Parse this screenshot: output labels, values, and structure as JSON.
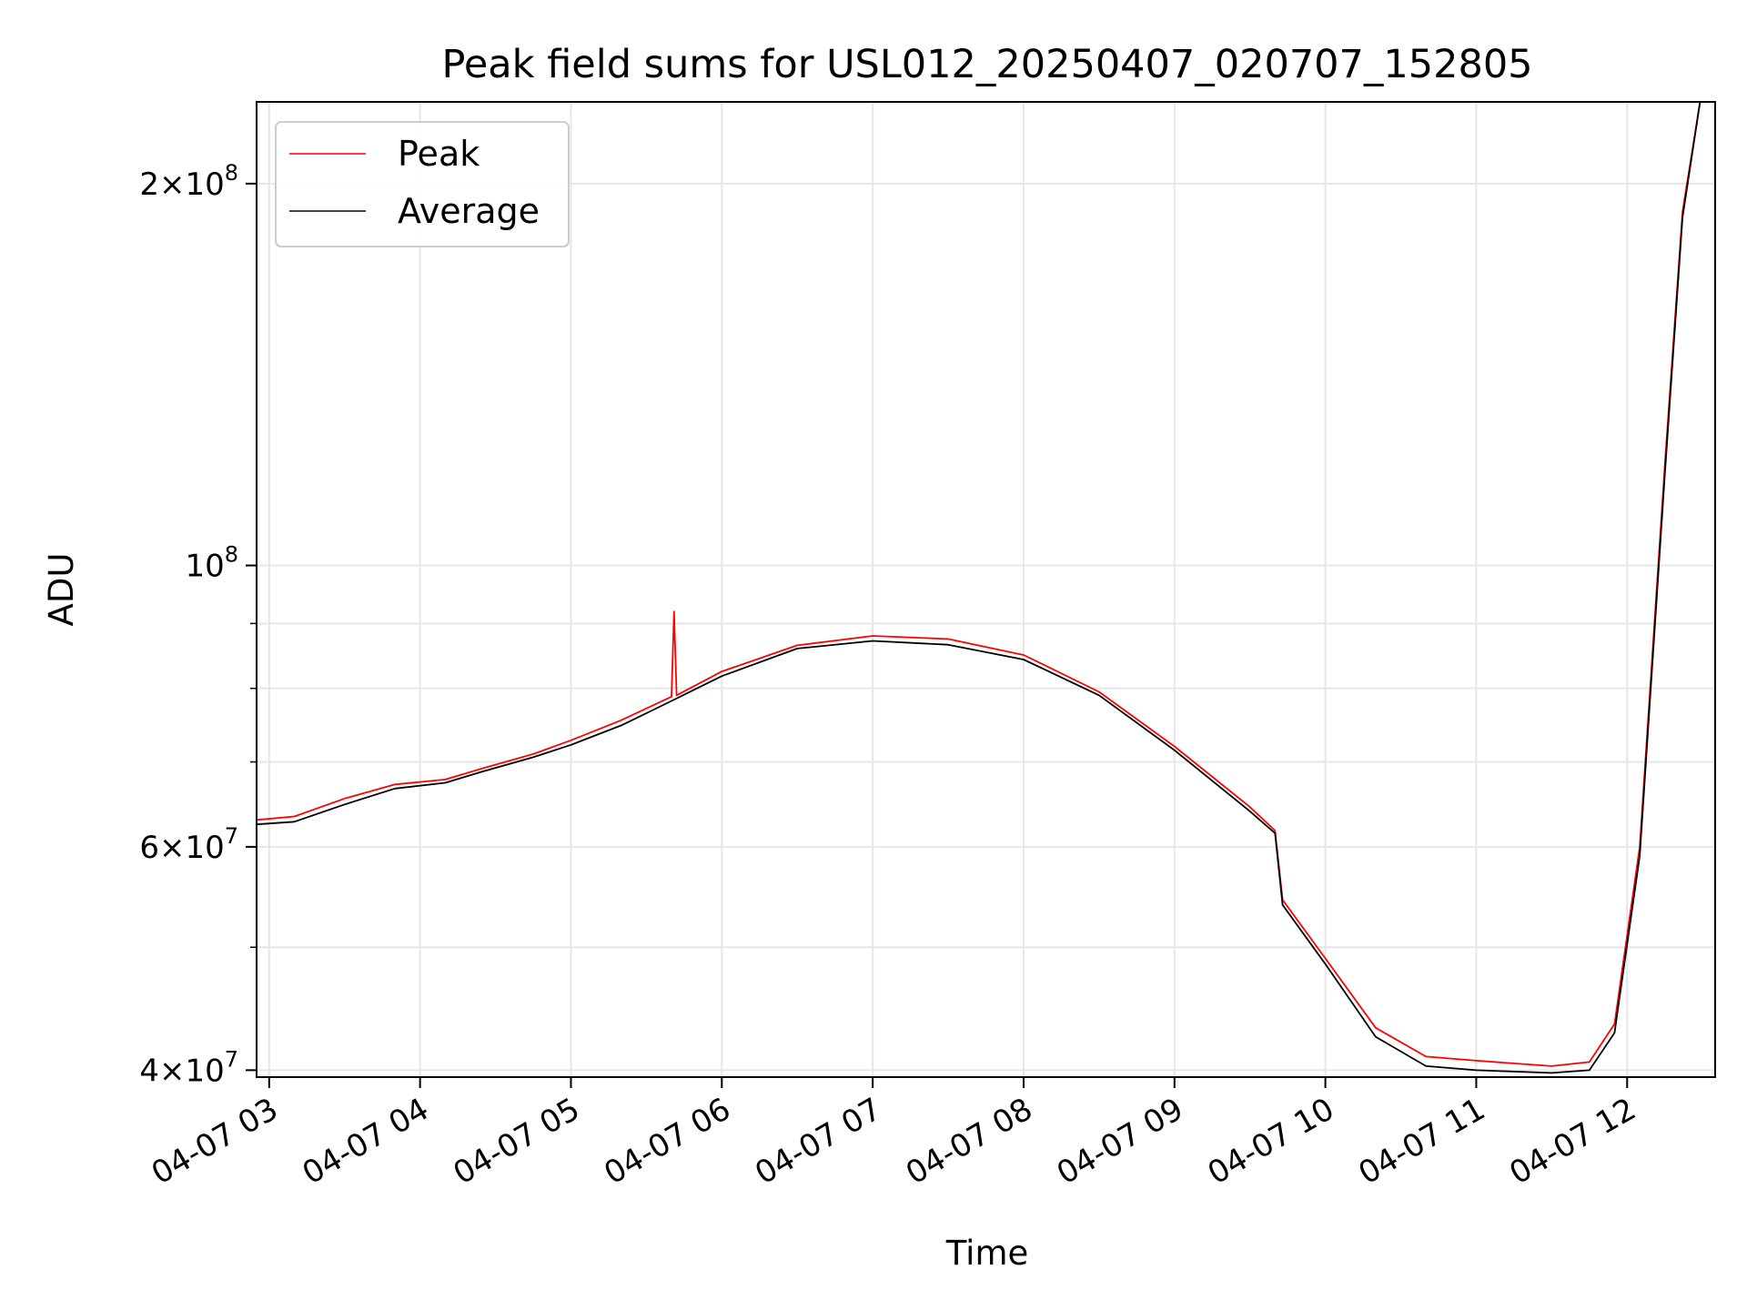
{
  "chart_data": {
    "type": "line",
    "title": "Peak field sums for USL012_20250407_020707_152805",
    "xlabel": "Time",
    "ylabel": "ADU",
    "y_scale": "log",
    "ylim": [
      39500000,
      232000000
    ],
    "xlim": [
      "2025-04-07 02:55",
      "2025-04-07 12:35"
    ],
    "grid": true,
    "legend_position": "upper-left",
    "x_ticks": [
      {
        "t": "2025-04-07 03:00",
        "label": "04-07 03"
      },
      {
        "t": "2025-04-07 04:00",
        "label": "04-07 04"
      },
      {
        "t": "2025-04-07 05:00",
        "label": "04-07 05"
      },
      {
        "t": "2025-04-07 06:00",
        "label": "04-07 06"
      },
      {
        "t": "2025-04-07 07:00",
        "label": "04-07 07"
      },
      {
        "t": "2025-04-07 08:00",
        "label": "04-07 08"
      },
      {
        "t": "2025-04-07 09:00",
        "label": "04-07 09"
      },
      {
        "t": "2025-04-07 10:00",
        "label": "04-07 10"
      },
      {
        "t": "2025-04-07 11:00",
        "label": "04-07 11"
      },
      {
        "t": "2025-04-07 12:00",
        "label": "04-07 12"
      }
    ],
    "y_major_ticks": [
      {
        "value": 40000000,
        "mant": "4",
        "exp": "7"
      },
      {
        "value": 60000000,
        "mant": "6",
        "exp": "7"
      },
      {
        "value": 100000000,
        "mant": "",
        "exp": "8"
      },
      {
        "value": 200000000,
        "mant": "2",
        "exp": "8"
      }
    ],
    "y_minor_ticks": [
      50000000,
      70000000,
      80000000,
      90000000
    ],
    "series": [
      {
        "name": "Peak",
        "color": "#ff0000",
        "points": [
          [
            "2025-04-07 02:55",
            63000000
          ],
          [
            "2025-04-07 03:10",
            63400000
          ],
          [
            "2025-04-07 03:30",
            65500000
          ],
          [
            "2025-04-07 03:50",
            67200000
          ],
          [
            "2025-04-07 04:10",
            67800000
          ],
          [
            "2025-04-07 04:25",
            69200000
          ],
          [
            "2025-04-07 04:45",
            71000000
          ],
          [
            "2025-04-07 05:00",
            72800000
          ],
          [
            "2025-04-07 05:20",
            75500000
          ],
          [
            "2025-04-07 05:40",
            78800000
          ],
          [
            "2025-04-07 05:41",
            92000000
          ],
          [
            "2025-04-07 05:42",
            79000000
          ],
          [
            "2025-04-07 06:00",
            82500000
          ],
          [
            "2025-04-07 06:30",
            86500000
          ],
          [
            "2025-04-07 07:00",
            88000000
          ],
          [
            "2025-04-07 07:30",
            87500000
          ],
          [
            "2025-04-07 08:00",
            85000000
          ],
          [
            "2025-04-07 08:30",
            79500000
          ],
          [
            "2025-04-07 09:00",
            72000000
          ],
          [
            "2025-04-07 09:30",
            64500000
          ],
          [
            "2025-04-07 09:40",
            61800000
          ],
          [
            "2025-04-07 09:43",
            54500000
          ],
          [
            "2025-04-07 10:00",
            49000000
          ],
          [
            "2025-04-07 10:20",
            43200000
          ],
          [
            "2025-04-07 10:40",
            41000000
          ],
          [
            "2025-04-07 11:00",
            40700000
          ],
          [
            "2025-04-07 11:30",
            40300000
          ],
          [
            "2025-04-07 11:45",
            40600000
          ],
          [
            "2025-04-07 11:55",
            43500000
          ],
          [
            "2025-04-07 12:05",
            60000000
          ],
          [
            "2025-04-07 12:15",
            120000000
          ],
          [
            "2025-04-07 12:22",
            190000000
          ],
          [
            "2025-04-07 12:29",
            232000000
          ]
        ]
      },
      {
        "name": "Average",
        "color": "#000000",
        "points": [
          [
            "2025-04-07 02:55",
            62500000
          ],
          [
            "2025-04-07 03:10",
            62800000
          ],
          [
            "2025-04-07 03:30",
            64800000
          ],
          [
            "2025-04-07 03:50",
            66700000
          ],
          [
            "2025-04-07 04:10",
            67400000
          ],
          [
            "2025-04-07 04:25",
            68800000
          ],
          [
            "2025-04-07 04:45",
            70600000
          ],
          [
            "2025-04-07 05:00",
            72200000
          ],
          [
            "2025-04-07 05:20",
            74800000
          ],
          [
            "2025-04-07 05:40",
            78200000
          ],
          [
            "2025-04-07 06:00",
            81800000
          ],
          [
            "2025-04-07 06:30",
            86000000
          ],
          [
            "2025-04-07 07:00",
            87200000
          ],
          [
            "2025-04-07 07:30",
            86600000
          ],
          [
            "2025-04-07 08:00",
            84300000
          ],
          [
            "2025-04-07 08:30",
            79000000
          ],
          [
            "2025-04-07 09:00",
            71500000
          ],
          [
            "2025-04-07 09:30",
            64000000
          ],
          [
            "2025-04-07 09:40",
            61500000
          ],
          [
            "2025-04-07 09:43",
            54000000
          ],
          [
            "2025-04-07 10:00",
            48500000
          ],
          [
            "2025-04-07 10:20",
            42500000
          ],
          [
            "2025-04-07 10:40",
            40300000
          ],
          [
            "2025-04-07 11:00",
            40000000
          ],
          [
            "2025-04-07 11:30",
            39800000
          ],
          [
            "2025-04-07 11:45",
            40000000
          ],
          [
            "2025-04-07 11:55",
            42800000
          ],
          [
            "2025-04-07 12:05",
            59000000
          ],
          [
            "2025-04-07 12:15",
            118000000
          ],
          [
            "2025-04-07 12:22",
            188000000
          ],
          [
            "2025-04-07 12:29",
            232000000
          ]
        ]
      }
    ]
  }
}
